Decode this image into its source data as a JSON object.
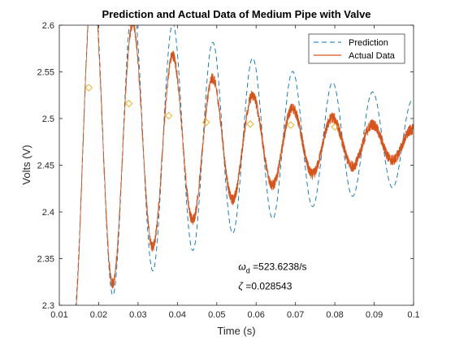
{
  "chart_data": {
    "type": "line",
    "title": "Prediction and Actual Data of Medium Pipe with Valve",
    "xlabel": "Time (s)",
    "ylabel": "Volts (V)",
    "xlim": [
      0.01,
      0.1
    ],
    "ylim": [
      2.3,
      2.6
    ],
    "xticks": [
      "0.01",
      "0.02",
      "0.03",
      "0.04",
      "0.05",
      "0.06",
      "0.07",
      "0.08",
      "0.09",
      "0.1"
    ],
    "yticks": [
      "2.3",
      "2.35",
      "2.4",
      "2.45",
      "2.5",
      "2.55",
      "2.6"
    ],
    "grid": false,
    "legend_position": "top-right",
    "series": [
      {
        "name": "Prediction",
        "style": "dashed",
        "color": "#0072BD",
        "model": {
          "steady": 2.475,
          "amplitude": 0.2,
          "decay": 17,
          "omega": 620,
          "t0": 0.0135,
          "start_value": 2.28
        },
        "points": [
          [
            0.0135,
            2.28
          ],
          [
            0.016,
            2.61
          ],
          [
            0.0225,
            2.362
          ],
          [
            0.0277,
            2.585
          ],
          [
            0.0327,
            2.38
          ],
          [
            0.0378,
            2.572
          ],
          [
            0.0429,
            2.392
          ],
          [
            0.048,
            2.554
          ],
          [
            0.053,
            2.402
          ],
          [
            0.0582,
            2.546
          ],
          [
            0.0631,
            2.407
          ],
          [
            0.0683,
            2.535
          ],
          [
            0.0732,
            2.414
          ],
          [
            0.0785,
            2.527
          ],
          [
            0.0836,
            2.425
          ],
          [
            0.0886,
            2.521
          ],
          [
            0.0937,
            2.43
          ],
          [
            0.1,
            2.515
          ]
        ]
      },
      {
        "name": "Actual Data",
        "style": "solid",
        "color": "#D95319",
        "model": {
          "steady": 2.473,
          "amplitude": 0.07,
          "decay": 30,
          "omega": 620,
          "t0": 0.0135,
          "start_value": 2.27,
          "noise": 0.006
        },
        "points": [
          [
            0.0135,
            2.27
          ],
          [
            0.017,
            2.525
          ],
          [
            0.0225,
            2.425
          ],
          [
            0.0277,
            2.51
          ],
          [
            0.0327,
            2.443
          ],
          [
            0.0378,
            2.501
          ],
          [
            0.0429,
            2.452
          ],
          [
            0.048,
            2.496
          ],
          [
            0.053,
            2.458
          ],
          [
            0.0582,
            2.492
          ],
          [
            0.0631,
            2.461
          ],
          [
            0.0683,
            2.49
          ],
          [
            0.0732,
            2.465
          ],
          [
            0.0785,
            2.487
          ],
          [
            0.0836,
            2.467
          ],
          [
            0.0886,
            2.485
          ],
          [
            0.1,
            2.476
          ]
        ]
      }
    ],
    "peak_markers": {
      "color": "#EDB120",
      "points": [
        [
          0.0175,
          2.533
        ],
        [
          0.0277,
          2.516
        ],
        [
          0.0378,
          2.503
        ],
        [
          0.0473,
          2.496
        ],
        [
          0.0585,
          2.494
        ],
        [
          0.0688,
          2.493
        ],
        [
          0.08,
          2.491
        ]
      ]
    },
    "annotations": [
      {
        "id": "omega",
        "symbol": "ω",
        "sub": "d",
        "text": " =523.6238/s",
        "x": 0.0555,
        "y": 2.338
      },
      {
        "id": "zeta",
        "symbol": "ζ",
        "sub": "",
        "text": " =0.028543",
        "x": 0.0555,
        "y": 2.317
      }
    ]
  }
}
